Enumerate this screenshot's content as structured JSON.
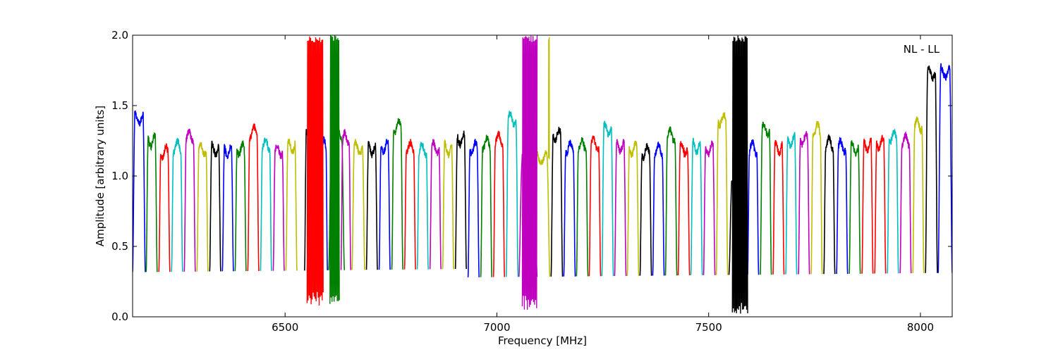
{
  "chart_data": {
    "type": "line",
    "xlabel": "Frequency [MHz]",
    "ylabel": "Amplitude [arbitrary units]",
    "xlim": [
      6140,
      8075
    ],
    "ylim": [
      0.0,
      2.0
    ],
    "x_ticks": [
      6500,
      7000,
      7500,
      8000
    ],
    "x_tick_labels": [
      "6500",
      "7000",
      "7500",
      "8000"
    ],
    "y_ticks": [
      0.0,
      0.5,
      1.0,
      1.5,
      2.0
    ],
    "y_tick_labels": [
      "0.0",
      "0.5",
      "1.0",
      "1.5",
      "2.0"
    ],
    "grid": false,
    "annotation": "NL - LL",
    "annotation_position": "top-right",
    "color_cycle": [
      "#0000ff",
      "#008000",
      "#ff0000",
      "#00bfbf",
      "#bf00bf",
      "#bfbf00",
      "#000000"
    ],
    "spectral_windows": [
      {
        "start": 6140,
        "end": 6170,
        "level": 1.41,
        "color": "#0000ff"
      },
      {
        "start": 6172,
        "end": 6198,
        "level": 1.25,
        "color": "#008000"
      },
      {
        "start": 6202,
        "end": 6228,
        "level": 1.17,
        "color": "#ff0000"
      },
      {
        "start": 6232,
        "end": 6258,
        "level": 1.21,
        "color": "#00bfbf"
      },
      {
        "start": 6262,
        "end": 6288,
        "level": 1.28,
        "color": "#bf00bf"
      },
      {
        "start": 6292,
        "end": 6318,
        "level": 1.19,
        "color": "#bfbf00"
      },
      {
        "start": 6322,
        "end": 6348,
        "level": 1.19,
        "color": "#000000"
      },
      {
        "start": 6352,
        "end": 6378,
        "level": 1.18,
        "color": "#0000ff"
      },
      {
        "start": 6382,
        "end": 6408,
        "level": 1.19,
        "color": "#008000"
      },
      {
        "start": 6412,
        "end": 6438,
        "level": 1.31,
        "color": "#ff0000"
      },
      {
        "start": 6442,
        "end": 6468,
        "level": 1.22,
        "color": "#00bfbf"
      },
      {
        "start": 6472,
        "end": 6498,
        "level": 1.18,
        "color": "#bf00bf"
      },
      {
        "start": 6502,
        "end": 6528,
        "level": 1.21,
        "color": "#bfbf00"
      },
      {
        "start": 6546,
        "end": 6568,
        "level": 1.28,
        "color": "#000000"
      },
      {
        "start": 6552,
        "end": 6588,
        "level": 1.1,
        "color": "#ff0000"
      },
      {
        "start": 6580,
        "end": 6600,
        "level": 1.22,
        "color": "#0000ff"
      },
      {
        "start": 6603,
        "end": 6640,
        "level": 1.3,
        "color": "#008000"
      },
      {
        "start": 6632,
        "end": 6655,
        "level": 1.27,
        "color": "#bf00bf"
      },
      {
        "start": 6658,
        "end": 6688,
        "level": 1.2,
        "color": "#bfbf00"
      },
      {
        "start": 6692,
        "end": 6718,
        "level": 1.19,
        "color": "#000000"
      },
      {
        "start": 6722,
        "end": 6748,
        "level": 1.21,
        "color": "#0000ff"
      },
      {
        "start": 6752,
        "end": 6778,
        "level": 1.35,
        "color": "#008000"
      },
      {
        "start": 6782,
        "end": 6808,
        "level": 1.2,
        "color": "#ff0000"
      },
      {
        "start": 6812,
        "end": 6838,
        "level": 1.19,
        "color": "#00bfbf"
      },
      {
        "start": 6842,
        "end": 6868,
        "level": 1.2,
        "color": "#bf00bf"
      },
      {
        "start": 6872,
        "end": 6898,
        "level": 1.19,
        "color": "#bfbf00"
      },
      {
        "start": 6902,
        "end": 6928,
        "level": 1.26,
        "color": "#000000"
      },
      {
        "start": 6932,
        "end": 6958,
        "level": 1.2,
        "color": "#0000ff"
      },
      {
        "start": 6962,
        "end": 6988,
        "level": 1.23,
        "color": "#008000"
      },
      {
        "start": 6992,
        "end": 7018,
        "level": 1.26,
        "color": "#ff0000"
      },
      {
        "start": 7022,
        "end": 7050,
        "level": 1.4,
        "color": "#00bfbf"
      },
      {
        "start": 7052,
        "end": 7095,
        "level": 1.1,
        "color": "#bf00bf"
      },
      {
        "start": 7088,
        "end": 7125,
        "level": 1.13,
        "color": "#bfbf00"
      },
      {
        "start": 7128,
        "end": 7155,
        "level": 1.29,
        "color": "#000000"
      },
      {
        "start": 7158,
        "end": 7185,
        "level": 1.2,
        "color": "#0000ff"
      },
      {
        "start": 7188,
        "end": 7215,
        "level": 1.22,
        "color": "#008000"
      },
      {
        "start": 7218,
        "end": 7245,
        "level": 1.23,
        "color": "#ff0000"
      },
      {
        "start": 7248,
        "end": 7275,
        "level": 1.33,
        "color": "#00bfbf"
      },
      {
        "start": 7278,
        "end": 7305,
        "level": 1.21,
        "color": "#bf00bf"
      },
      {
        "start": 7308,
        "end": 7335,
        "level": 1.19,
        "color": "#bfbf00"
      },
      {
        "start": 7338,
        "end": 7365,
        "level": 1.17,
        "color": "#000000"
      },
      {
        "start": 7368,
        "end": 7395,
        "level": 1.18,
        "color": "#0000ff"
      },
      {
        "start": 7398,
        "end": 7425,
        "level": 1.29,
        "color": "#008000"
      },
      {
        "start": 7428,
        "end": 7455,
        "level": 1.19,
        "color": "#ff0000"
      },
      {
        "start": 7458,
        "end": 7485,
        "level": 1.21,
        "color": "#00bfbf"
      },
      {
        "start": 7488,
        "end": 7515,
        "level": 1.19,
        "color": "#bf00bf"
      },
      {
        "start": 7518,
        "end": 7545,
        "level": 1.4,
        "color": "#bfbf00"
      },
      {
        "start": 7548,
        "end": 7590,
        "level": 1.0,
        "color": "#000000"
      },
      {
        "start": 7592,
        "end": 7618,
        "level": 1.2,
        "color": "#0000ff"
      },
      {
        "start": 7622,
        "end": 7648,
        "level": 1.33,
        "color": "#008000"
      },
      {
        "start": 7652,
        "end": 7678,
        "level": 1.2,
        "color": "#ff0000"
      },
      {
        "start": 7682,
        "end": 7708,
        "level": 1.25,
        "color": "#00bfbf"
      },
      {
        "start": 7712,
        "end": 7738,
        "level": 1.26,
        "color": "#bf00bf"
      },
      {
        "start": 7742,
        "end": 7768,
        "level": 1.33,
        "color": "#bfbf00"
      },
      {
        "start": 7772,
        "end": 7798,
        "level": 1.23,
        "color": "#000000"
      },
      {
        "start": 7802,
        "end": 7828,
        "level": 1.21,
        "color": "#0000ff"
      },
      {
        "start": 7832,
        "end": 7858,
        "level": 1.2,
        "color": "#008000"
      },
      {
        "start": 7862,
        "end": 7888,
        "level": 1.22,
        "color": "#ff0000"
      },
      {
        "start": 7892,
        "end": 7918,
        "level": 1.23,
        "color": "#ff0000"
      },
      {
        "start": 7922,
        "end": 7948,
        "level": 1.28,
        "color": "#00bfbf"
      },
      {
        "start": 7952,
        "end": 7978,
        "level": 1.25,
        "color": "#bf00bf"
      },
      {
        "start": 7982,
        "end": 8008,
        "level": 1.36,
        "color": "#bfbf00"
      },
      {
        "start": 8012,
        "end": 8040,
        "level": 1.73,
        "color": "#000000"
      },
      {
        "start": 8042,
        "end": 8075,
        "level": 1.74,
        "color": "#0000ff"
      }
    ],
    "rfi_spikes": [
      {
        "x_start": 6552,
        "x_end": 6590,
        "ymin": 0.08,
        "ymax": 2.0,
        "color": "#ff0000"
      },
      {
        "x_start": 6606,
        "x_end": 6628,
        "ymin": 0.07,
        "ymax": 2.0,
        "color": "#008000"
      },
      {
        "x_start": 7060,
        "x_end": 7095,
        "ymin": 0.05,
        "ymax": 2.0,
        "color": "#bf00bf"
      },
      {
        "x_start": 7122,
        "x_end": 7124,
        "ymin": 1.1,
        "ymax": 2.0,
        "color": "#bfbf00"
      },
      {
        "x_start": 7556,
        "x_end": 7592,
        "ymin": 0.0,
        "ymax": 2.0,
        "color": "#000000"
      }
    ]
  }
}
